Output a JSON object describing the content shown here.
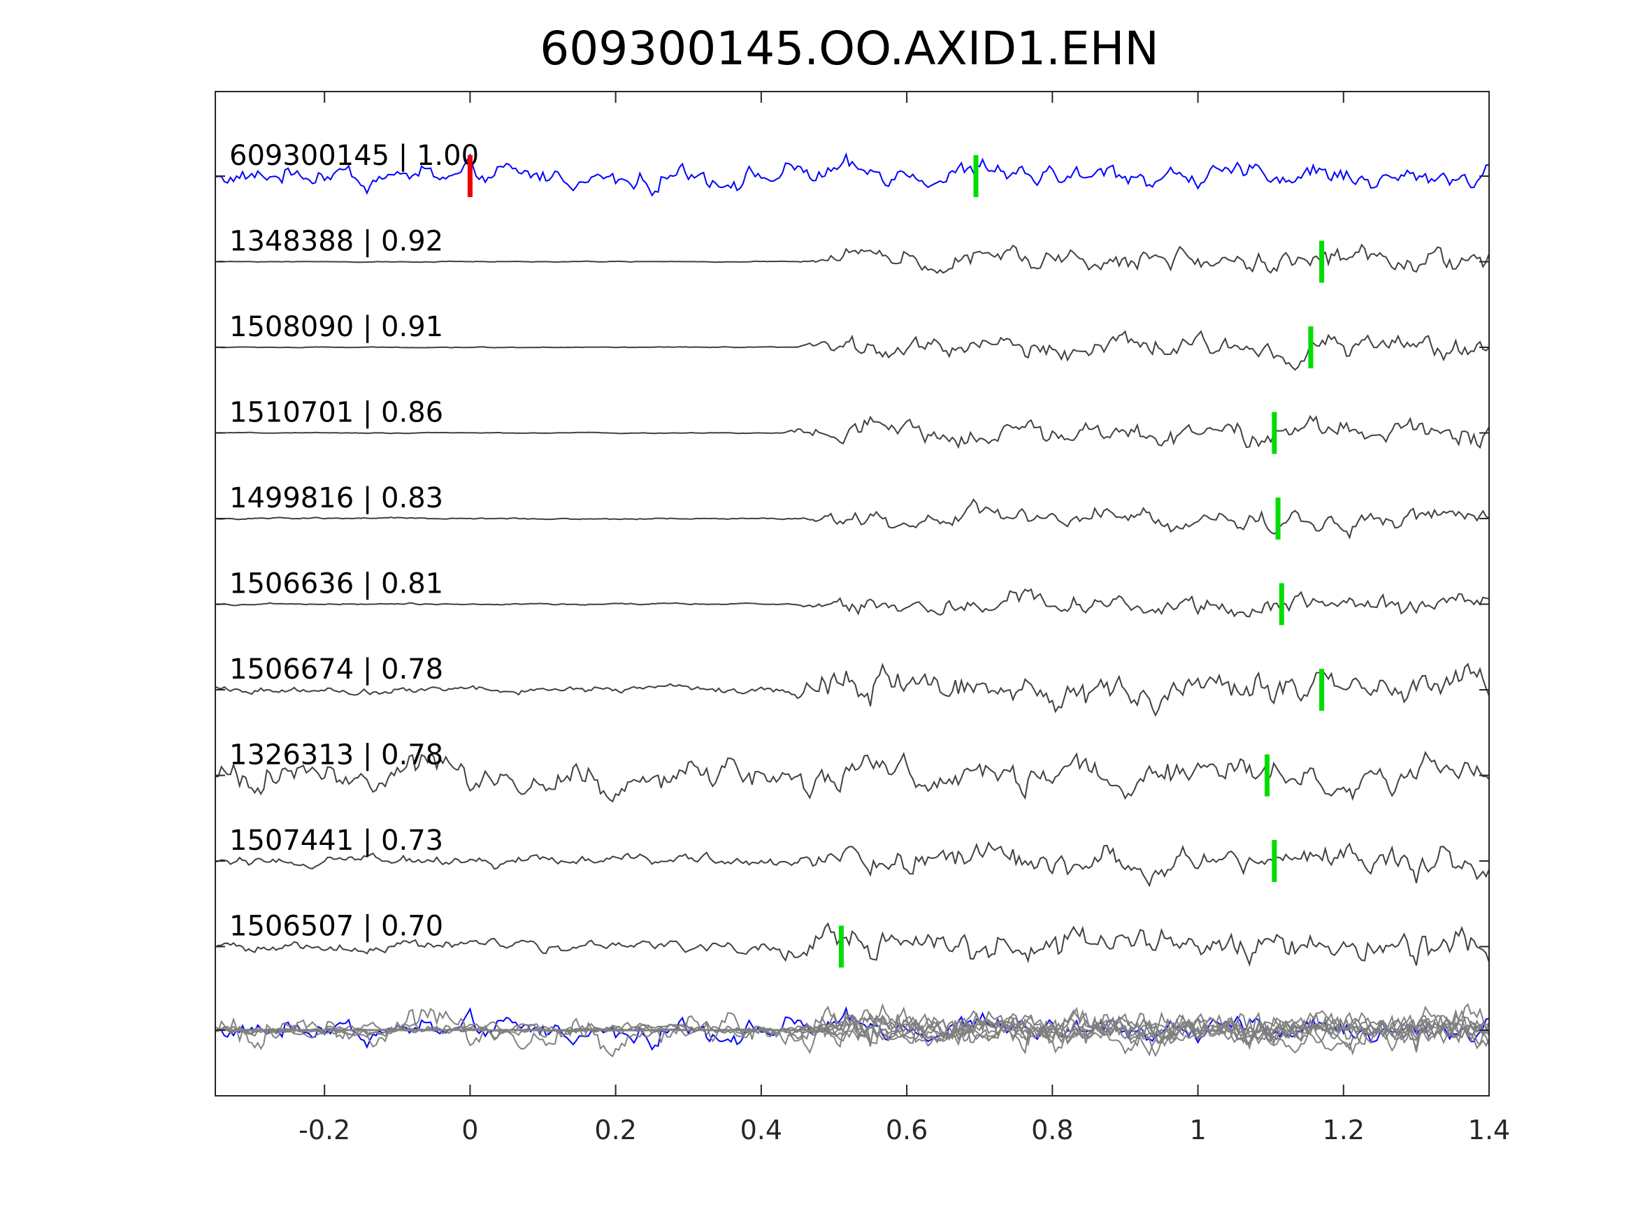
{
  "chart_data": {
    "type": "line",
    "title": "609300145.OO.AXID1.EHN",
    "xlabel": "",
    "ylabel": "",
    "xlim": [
      -0.35,
      1.4
    ],
    "x_ticks": [
      -0.2,
      0,
      0.2,
      0.4,
      0.6,
      0.8,
      1,
      1.2,
      1.4
    ],
    "x_tick_labels": [
      "-0.2",
      "0",
      "0.2",
      "0.4",
      "0.6",
      "0.8",
      "1",
      "1.2",
      "1.4"
    ],
    "grid": false,
    "colors": {
      "reference": "#0000ff",
      "template": "#404040",
      "stack": "#808080",
      "pick_green": "#00dd00",
      "pick_red": "#ee0000",
      "axes": "#262626"
    },
    "series": [
      {
        "label": "609300145 | 1.00",
        "signal_onset": -0.35,
        "noise": 0.35,
        "signal_amp": 0.55,
        "picks": [
          {
            "x": 0.0,
            "color": "red"
          },
          {
            "x": 0.695,
            "color": "green"
          }
        ]
      },
      {
        "label": "1348388 | 0.92",
        "signal_onset": 0.45,
        "noise": 0.02,
        "signal_amp": 0.55,
        "picks": [
          {
            "x": 1.17,
            "color": "green"
          }
        ]
      },
      {
        "label": "1508090 | 0.91",
        "signal_onset": 0.45,
        "noise": 0.02,
        "signal_amp": 0.55,
        "picks": [
          {
            "x": 1.155,
            "color": "green"
          }
        ]
      },
      {
        "label": "1510701 | 0.86",
        "signal_onset": 0.43,
        "noise": 0.02,
        "signal_amp": 0.6,
        "picks": [
          {
            "x": 1.105,
            "color": "green"
          }
        ]
      },
      {
        "label": "1499816 | 0.83",
        "signal_onset": 0.45,
        "noise": 0.04,
        "signal_amp": 0.5,
        "picks": [
          {
            "x": 1.11,
            "color": "green"
          }
        ]
      },
      {
        "label": "1506636 | 0.81",
        "signal_onset": 0.45,
        "noise": 0.04,
        "signal_amp": 0.5,
        "picks": [
          {
            "x": 1.115,
            "color": "green"
          }
        ]
      },
      {
        "label": "1506674 | 0.78",
        "signal_onset": 0.43,
        "noise": 0.18,
        "signal_amp": 0.85,
        "picks": [
          {
            "x": 1.17,
            "color": "green"
          }
        ]
      },
      {
        "label": "1326313 | 0.78",
        "signal_onset": -0.35,
        "noise": 0.7,
        "signal_amp": 0.75,
        "picks": [
          {
            "x": 1.095,
            "color": "green"
          }
        ]
      },
      {
        "label": "1507441 | 0.73",
        "signal_onset": 0.43,
        "noise": 0.25,
        "signal_amp": 0.75,
        "picks": [
          {
            "x": 1.105,
            "color": "green"
          }
        ]
      },
      {
        "label": "1506507 | 0.70",
        "signal_onset": 0.4,
        "noise": 0.25,
        "signal_amp": 0.85,
        "picks": [
          {
            "x": 0.51,
            "color": "green"
          }
        ]
      }
    ]
  }
}
